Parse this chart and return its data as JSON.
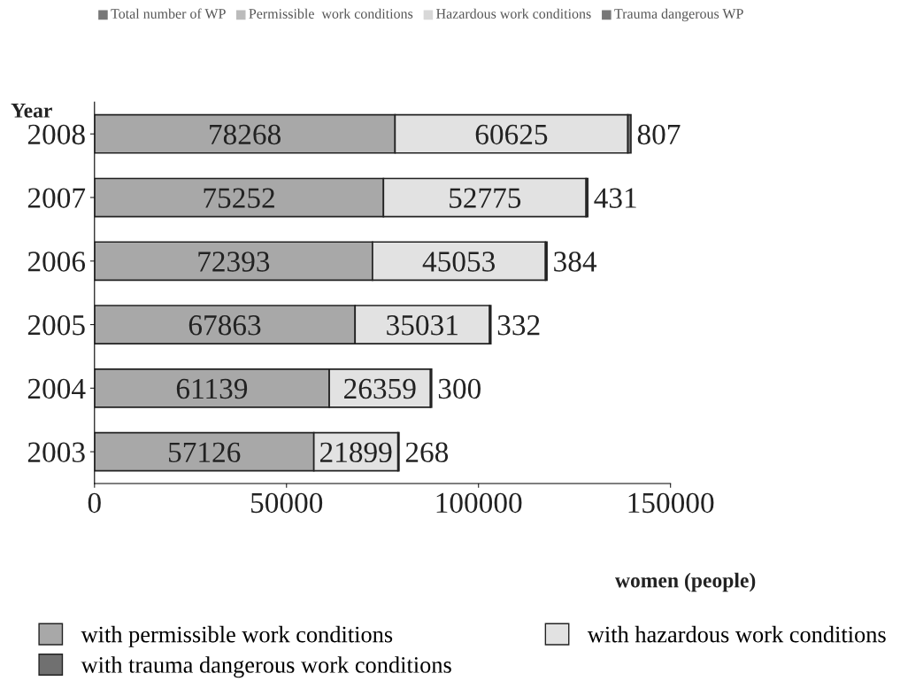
{
  "chart_data": {
    "type": "bar",
    "orientation": "horizontal",
    "stacked": true,
    "data_labels": true,
    "categories": [
      "2008",
      "2007",
      "2006",
      "2005",
      "2004",
      "2003"
    ],
    "series": [
      {
        "name": "with permissible work conditions",
        "color": "#a8a8a8",
        "values": [
          78268,
          75252,
          72393,
          67863,
          61139,
          57126
        ]
      },
      {
        "name": "with hazardous work conditions",
        "color": "#e2e2e2",
        "values": [
          60625,
          52775,
          45053,
          35031,
          26359,
          21899
        ]
      },
      {
        "name": "with trauma dangerous work conditions",
        "color": "#707070",
        "values": [
          807,
          431,
          384,
          332,
          300,
          268
        ]
      }
    ],
    "xlim": [
      0,
      150000
    ],
    "xticks": [
      0,
      50000,
      100000,
      150000
    ],
    "xlabel": "women (people)",
    "ylabel": "Year",
    "legend": "bottom",
    "grid": false,
    "annotations": [
      "Total number of WP",
      "Permissible  work conditions",
      "Hazardous work conditions",
      "Trauma dangerous WP"
    ]
  }
}
